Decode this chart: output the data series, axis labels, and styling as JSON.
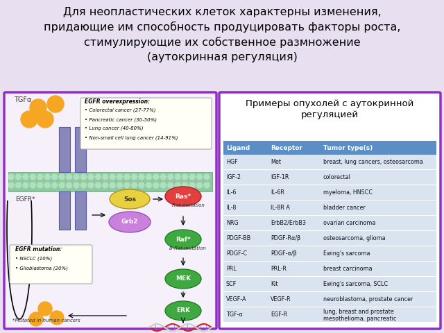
{
  "title": "Для неопластических клеток характерны изменения,\nпридающие им способность продуцировать факторы роста,\nстимулирующие их собственное размножение\n(аутокринная регуляция)",
  "title_fontsize": 11.5,
  "title_color": "#000000",
  "background_color": "#e8e0f0",
  "left_box_border_color": "#9030c0",
  "right_box_border_color": "#9030c0",
  "table_title": "Примеры опухолей с аутокринной\nрегуляцией",
  "table_header": [
    "Ligand",
    "Receptor",
    "Tumor type(s)"
  ],
  "table_header_bg": "#5b8ec4",
  "table_header_color": "#ffffff",
  "table_rows": [
    [
      "HGF",
      "Met",
      "breast, lung cancers, osteosarcoma"
    ],
    [
      "IGF-2",
      "IGF-1R",
      "colorectal"
    ],
    [
      "IL-6",
      "IL-6R",
      "myeloma, HNSCC"
    ],
    [
      "IL-8",
      "IL-8R A",
      "bladder cancer"
    ],
    [
      "NRG",
      "ErbB2/ErbB3",
      "ovarian carcinoma"
    ],
    [
      "PDGF-BB",
      "PDGF-Rα/β",
      "osteosarcoma, glioma"
    ],
    [
      "PDGF-C",
      "PDGF-α/β",
      "Ewing's sarcoma"
    ],
    [
      "PRL",
      "PRL-R",
      "breast carcinoma"
    ],
    [
      "SCF",
      "Kit",
      "Ewing's sarcoma, SCLC"
    ],
    [
      "VEGF-A",
      "VEGF-R",
      "neuroblastoma, prostate cancer"
    ],
    [
      "TGF-α",
      "EGF-R",
      "lung, breast and prostate\nmesothelioma, pancreatic"
    ]
  ],
  "table_row_bg": "#d9e4f0",
  "left_box_bg": "#f5f0fa",
  "membrane_color": "#90c8a0",
  "membrane_dot_color": "#b0e0c0",
  "orange_color": "#f5a623",
  "green_ellipse": "#40a840",
  "green_ellipse_edge": "#208020",
  "red_ellipse": "#e04040",
  "red_ellipse_edge": "#b02020",
  "yellow_ellipse": "#e8d040",
  "purple_ellipse": "#cc80dd",
  "receptor_color": "#8888bb",
  "receptor_edge": "#5555aa"
}
